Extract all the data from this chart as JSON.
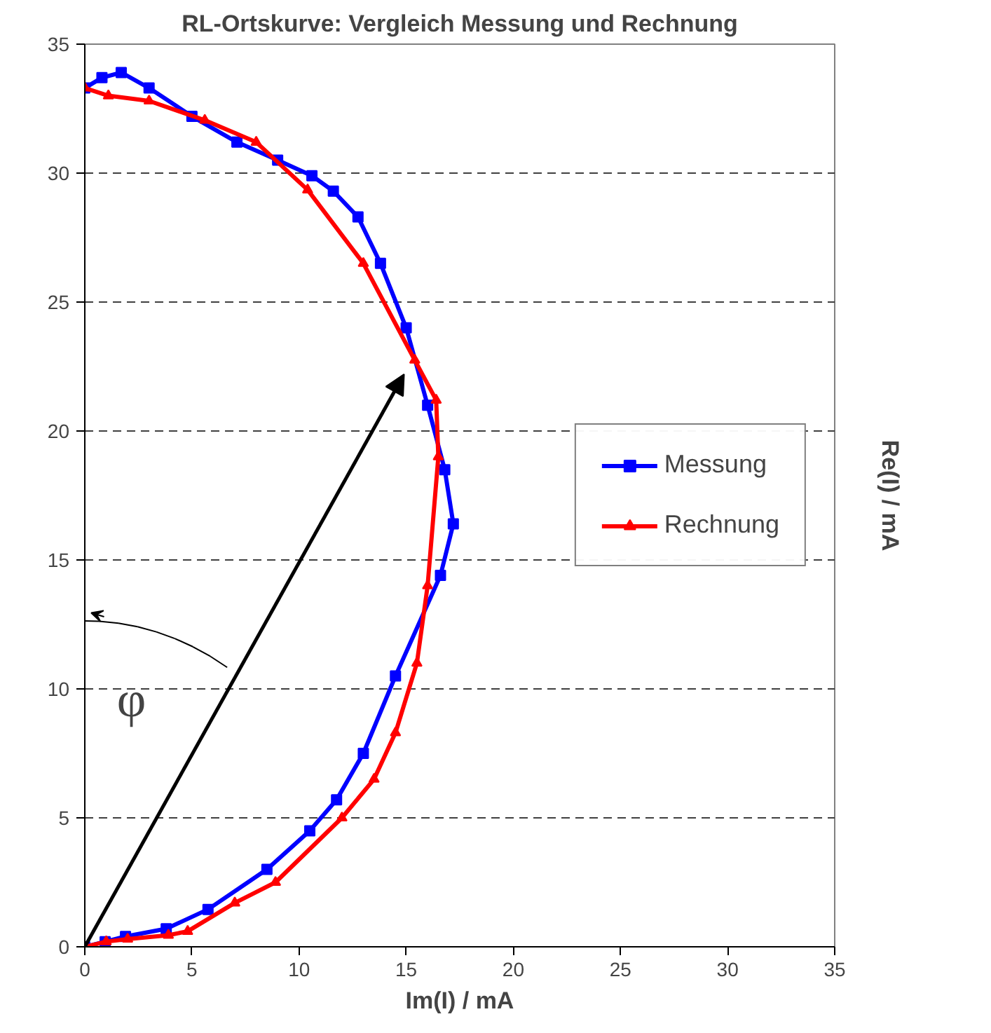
{
  "chart_data": {
    "type": "line",
    "title": "RL-Ortskurve: Vergleich Messung und Rechnung",
    "xlabel": "Im(I) / mA",
    "ylabel": "Re(I) / mA",
    "xlim": [
      0,
      35
    ],
    "ylim": [
      0,
      35
    ],
    "xticks": [
      0,
      5,
      10,
      15,
      20,
      25,
      30,
      35
    ],
    "yticks": [
      0,
      5,
      10,
      15,
      20,
      25,
      30,
      35
    ],
    "grid": "y",
    "legend": "right",
    "line_style": "solid",
    "annotations": [
      "φ"
    ],
    "series": [
      {
        "name": "Messung",
        "color": "#0000ff",
        "marker": "square",
        "x": [
          0,
          0.95,
          1.9,
          3.8,
          5.75,
          8.5,
          10.5,
          11.75,
          13,
          14.5,
          16.6,
          17.2,
          16.8,
          16,
          15,
          13.8,
          12.75,
          11.6,
          10.6,
          9,
          7.1,
          5,
          3,
          1.7,
          0.8,
          0
        ],
        "values": [
          0,
          0.2,
          0.4,
          0.7,
          1.45,
          3,
          4.5,
          5.7,
          7.5,
          10.5,
          14.4,
          16.4,
          18.5,
          21,
          24,
          26.5,
          28.3,
          29.3,
          29.9,
          30.5,
          31.2,
          32.2,
          33.3,
          33.9,
          33.7,
          33.3
        ]
      },
      {
        "name": "Rechnung",
        "color": "#ff0000",
        "marker": "triangle",
        "x": [
          0,
          1,
          2,
          3.9,
          4.8,
          7,
          8.9,
          12,
          13.5,
          14.5,
          15.5,
          16,
          16.5,
          16.4,
          15.4,
          13,
          10.4,
          8,
          5.6,
          3,
          1.1,
          0
        ],
        "values": [
          0,
          0.2,
          0.3,
          0.45,
          0.6,
          1.7,
          2.5,
          5,
          6.5,
          8.3,
          11,
          14,
          19,
          21.2,
          22.75,
          26.5,
          29.35,
          31.2,
          32.05,
          32.8,
          33,
          33.3
        ]
      }
    ]
  }
}
